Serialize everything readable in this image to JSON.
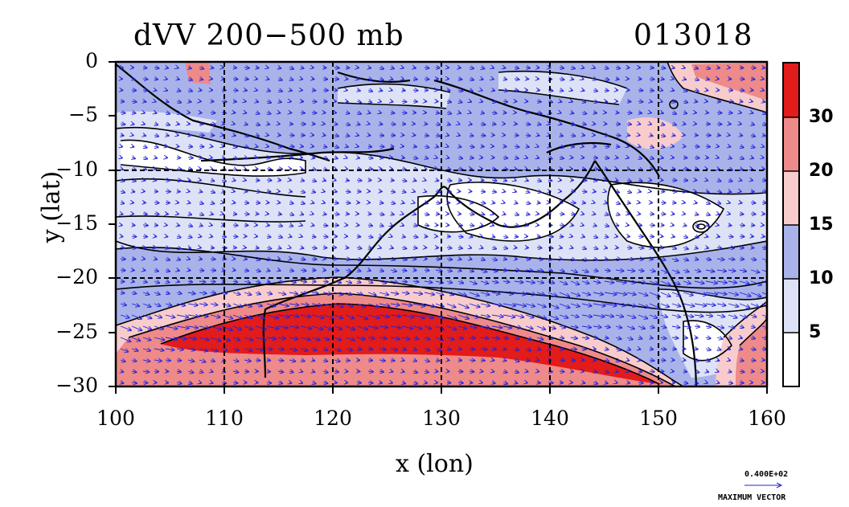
{
  "title": "dVV 200−500 mb",
  "timestamp": "013018",
  "xlabel": "x (lon)",
  "ylabel": "y (lat)",
  "x_ticks": [
    "100",
    "110",
    "120",
    "130",
    "140",
    "150",
    "160"
  ],
  "y_ticks": [
    "0",
    "−5",
    "−10",
    "−15",
    "−20",
    "−25",
    "−30"
  ],
  "colorbar": {
    "labels": [
      "5",
      "10",
      "15",
      "20",
      "30"
    ],
    "colors": [
      "#ffffff",
      "#dde2f7",
      "#a9b3ea",
      "#f8cccc",
      "#ee8a8a",
      "#e21b1b"
    ]
  },
  "max_vector": {
    "value": "0.400E+02",
    "label": "MAXIMUM VECTOR"
  },
  "map": {
    "lon_range": [
      100,
      160
    ],
    "lat_range": [
      -30,
      0
    ],
    "grid": "dashed every 10 degrees",
    "vector_color": "#2323d8",
    "contour_color": "#000000"
  }
}
